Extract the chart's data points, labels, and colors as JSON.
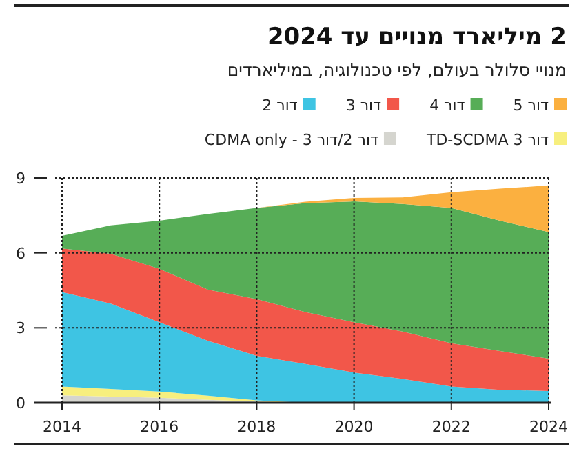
{
  "chart_data": {
    "type": "area",
    "stacked": true,
    "title": "2 מיליארד מנויים עד 2024",
    "subtitle": "מנויי סלולר בעולם, לפי טכנולוגיה, במיליארדים",
    "x": [
      2014,
      2015,
      2016,
      2017,
      2018,
      2019,
      2020,
      2021,
      2022,
      2023,
      2024
    ],
    "series": [
      {
        "name": "דור 2/דור 3 - CDMA only",
        "color": "#d5d5cf",
        "values": [
          0.3,
          0.25,
          0.2,
          0.12,
          0.05,
          0,
          0,
          0,
          0,
          0,
          0
        ]
      },
      {
        "name": "דור 3 TD-SCDMA",
        "color": "#f7ef7e",
        "values": [
          0.35,
          0.3,
          0.25,
          0.16,
          0.05,
          0,
          0,
          0,
          0,
          0,
          0
        ]
      },
      {
        "name": "דור 2",
        "color": "#3ec4e3",
        "values": [
          3.78,
          3.42,
          2.77,
          2.2,
          1.78,
          1.55,
          1.21,
          0.95,
          0.65,
          0.52,
          0.47
        ]
      },
      {
        "name": "דור 3",
        "color": "#f2574a",
        "values": [
          1.75,
          1.99,
          2.14,
          2.05,
          2.27,
          2.08,
          2.01,
          1.9,
          1.73,
          1.55,
          1.3
        ]
      },
      {
        "name": "דור 4",
        "color": "#57ad57",
        "values": [
          0.5,
          1.14,
          1.93,
          3.03,
          3.65,
          4.36,
          4.84,
          5.11,
          5.42,
          5.22,
          5.06
        ]
      },
      {
        "name": "דור 5",
        "color": "#fbb040",
        "values": [
          0,
          0,
          0,
          0,
          0,
          0.06,
          0.14,
          0.26,
          0.63,
          1.28,
          1.87
        ]
      }
    ],
    "xlim": [
      2014,
      2024
    ],
    "xticks": [
      2014,
      2016,
      2018,
      2020,
      2022,
      2024
    ],
    "ylim": [
      0,
      9
    ],
    "yticks": [
      0,
      3,
      6,
      9
    ],
    "grid": true,
    "legend": "top"
  }
}
